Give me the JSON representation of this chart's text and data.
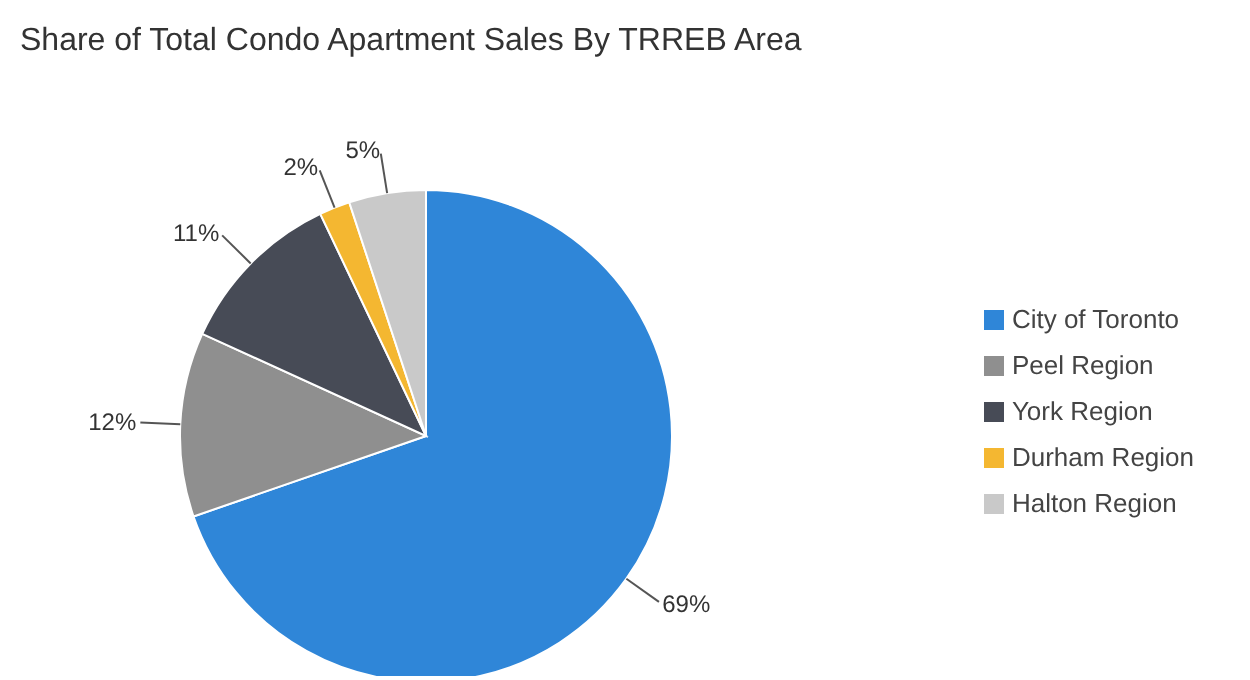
{
  "chart_data": {
    "type": "pie",
    "title": "Share of Total Condo Apartment Sales By TRREB Area",
    "categories": [
      "City of Toronto",
      "Peel Region",
      "York Region",
      "Durham Region",
      "Halton Region"
    ],
    "values": [
      69,
      12,
      11,
      2,
      5
    ],
    "value_labels": [
      "69%",
      "12%",
      "11%",
      "2%",
      "5%"
    ],
    "colors": [
      "#2f86d8",
      "#8f8f8f",
      "#474b56",
      "#f4b731",
      "#c9c9c9"
    ],
    "legend": "right"
  }
}
